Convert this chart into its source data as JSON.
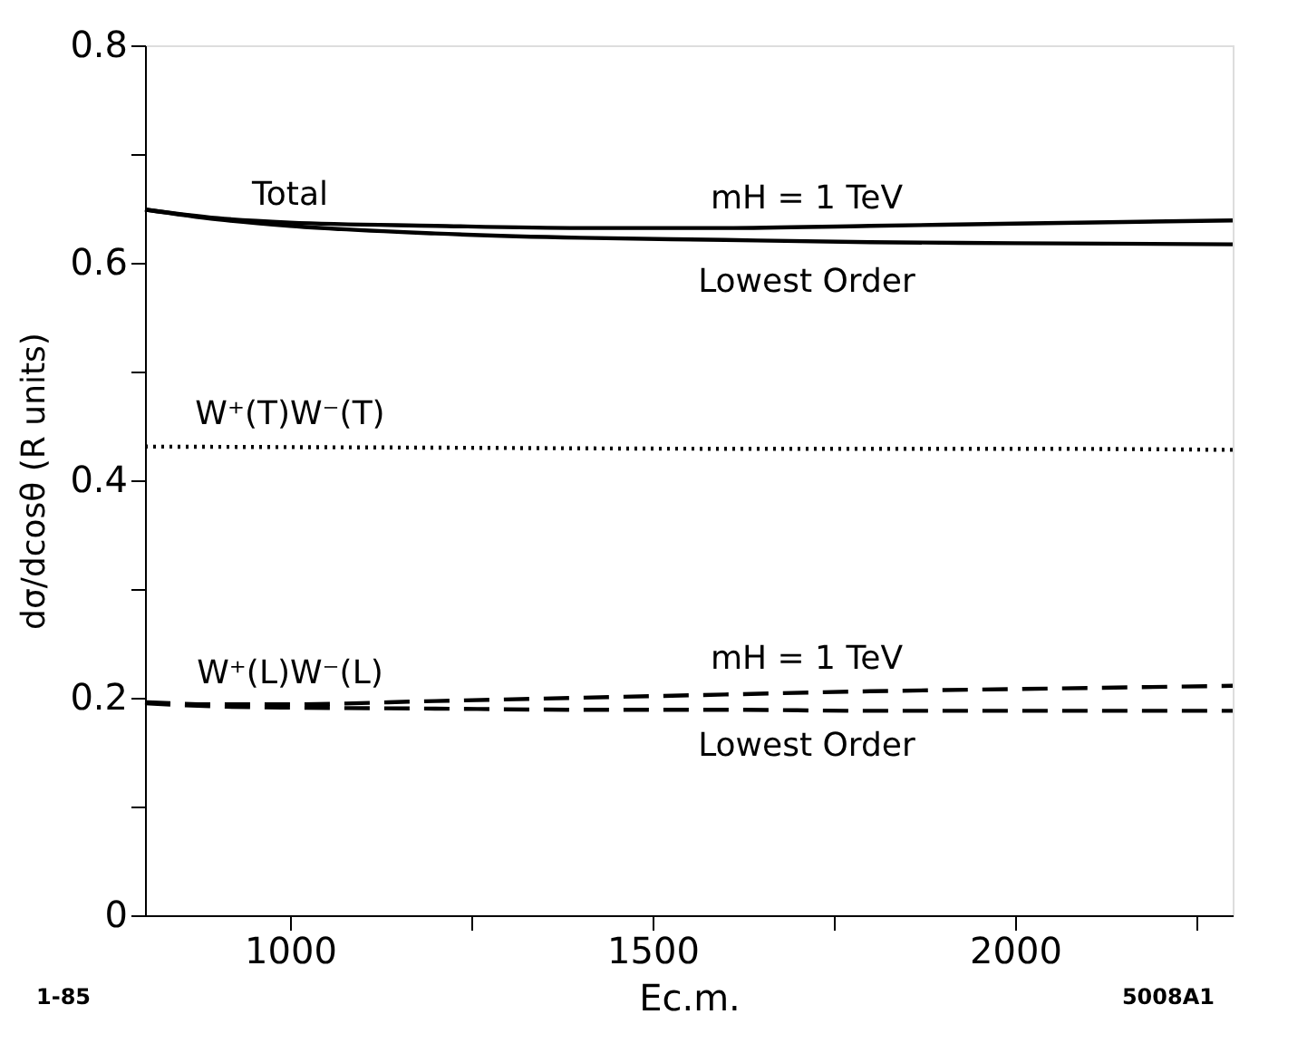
{
  "chart_data": {
    "type": "line",
    "xlabel": "Ec.m.",
    "ylabel": "dσ/dcosθ   (R units)",
    "xlim": [
      800,
      2300
    ],
    "ylim": [
      0,
      0.8
    ],
    "xticks": [
      1000,
      {
        "value": 1250,
        "label": null
      },
      1500,
      {
        "value": 1750,
        "label": null
      },
      2000,
      {
        "value": 2250,
        "label": null
      }
    ],
    "yticks": [
      0,
      {
        "value": 0.1,
        "label": null
      },
      0.2,
      {
        "value": 0.3,
        "label": null
      },
      0.4,
      {
        "value": 0.5,
        "label": null
      },
      0.6,
      {
        "value": 0.7,
        "label": null
      },
      0.8
    ],
    "grid": false,
    "series": [
      {
        "color": "#000000",
        "line_style": "solid",
        "x": [
          800,
          900,
          1000,
          1200,
          1400,
          1600,
          1800,
          2000,
          2300
        ],
        "values": [
          0.649,
          0.641,
          0.637,
          0.634,
          0.632,
          0.632,
          0.634,
          0.636,
          0.639
        ]
      },
      {
        "color": "#000000",
        "line_style": "solid",
        "x": [
          800,
          900,
          1000,
          1200,
          1400,
          1600,
          1800,
          2000,
          2300
        ],
        "values": [
          0.649,
          0.64,
          0.634,
          0.627,
          0.623,
          0.621,
          0.619,
          0.618,
          0.617
        ]
      },
      {
        "color": "#000000",
        "line_style": "dotted",
        "x": [
          800,
          1200,
          1600,
          2000,
          2300
        ],
        "values": [
          0.431,
          0.43,
          0.429,
          0.429,
          0.428
        ]
      },
      {
        "color": "#000000",
        "line_style": "dashed",
        "x": [
          800,
          900,
          1000,
          1200,
          1400,
          1600,
          1800,
          2000,
          2300
        ],
        "values": [
          0.196,
          0.194,
          0.194,
          0.197,
          0.2,
          0.203,
          0.206,
          0.208,
          0.211
        ]
      },
      {
        "color": "#000000",
        "line_style": "dashed",
        "x": [
          800,
          900,
          1000,
          1200,
          1400,
          1600,
          1800,
          2000,
          2300
        ],
        "values": [
          0.195,
          0.192,
          0.191,
          0.19,
          0.189,
          0.189,
          0.188,
          0.188,
          0.188
        ]
      }
    ],
    "annotations": [
      "Total",
      "mH = 1 TeV",
      "Lowest Order",
      "W⁺(T)W⁻(T)",
      "W⁺(L)W⁻(L)",
      "mH = 1 TeV",
      "Lowest Order",
      "1-85",
      "5008A1"
    ]
  }
}
